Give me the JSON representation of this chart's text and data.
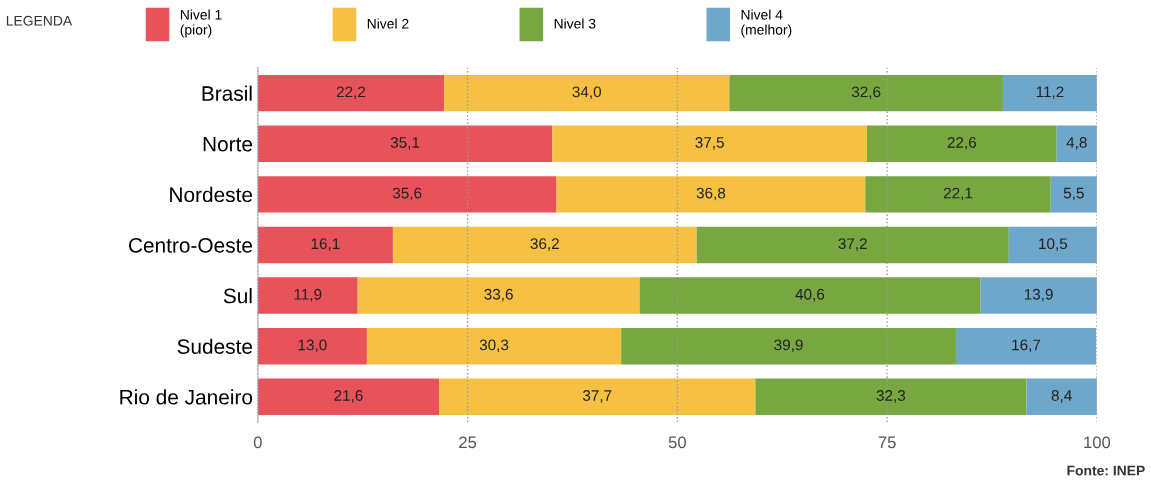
{
  "chart_data": {
    "type": "bar",
    "orientation": "horizontal",
    "stacked": true,
    "categories": [
      "Brasil",
      "Norte",
      "Nordeste",
      "Centro-Oeste",
      "Sul",
      "Sudeste",
      "Rio de Janeiro"
    ],
    "series": [
      {
        "name": "Nivel 1\n(pior)",
        "color": "#e8525a",
        "values": [
          22.2,
          35.1,
          35.6,
          16.1,
          11.9,
          13.0,
          21.6
        ],
        "value_labels": [
          "22,2",
          "35,1",
          "35,6",
          "16,1",
          "11,9",
          "13,0",
          "21,6"
        ]
      },
      {
        "name": "Nivel 2",
        "color": "#f6c143",
        "values": [
          34.0,
          37.5,
          36.8,
          36.2,
          33.6,
          30.3,
          37.7
        ],
        "value_labels": [
          "34,0",
          "37,5",
          "36,8",
          "36,2",
          "33,6",
          "30,3",
          "37,7"
        ]
      },
      {
        "name": "Nivel 3",
        "color": "#78a640",
        "values": [
          32.6,
          22.6,
          22.1,
          37.2,
          40.6,
          39.9,
          32.3
        ],
        "value_labels": [
          "32,6",
          "22,6",
          "22,1",
          "37,2",
          "40,6",
          "39,9",
          "32,3"
        ]
      },
      {
        "name": "Nivel 4\n(melhor)",
        "color": "#6fa7cb",
        "values": [
          11.2,
          4.8,
          5.5,
          10.5,
          13.9,
          16.7,
          8.4
        ],
        "value_labels": [
          "11,2",
          "4,8",
          "5,5",
          "10,5",
          "13,9",
          "16,7",
          "8,4"
        ]
      }
    ],
    "xlim": [
      0,
      100
    ],
    "xticks": [
      0,
      25,
      50,
      75,
      100
    ],
    "grid": "x",
    "legend": "top left",
    "legend_title": "LEGENDA",
    "annotations": [
      "Fonte: INEP"
    ]
  }
}
